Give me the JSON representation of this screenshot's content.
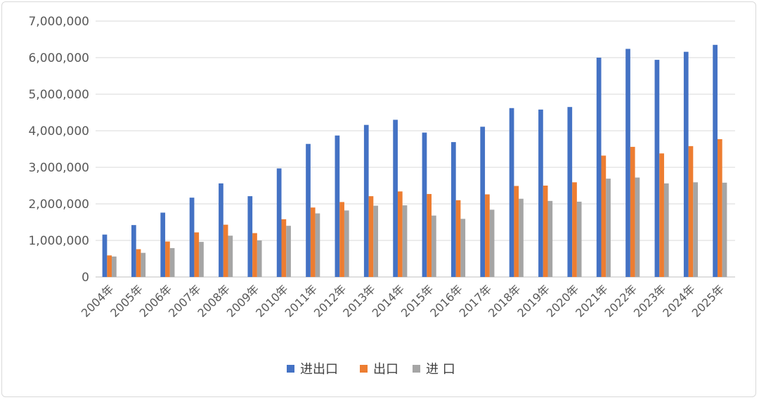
{
  "chart_data": {
    "type": "bar",
    "categories": [
      "2004年",
      "2005年",
      "2006年",
      "2007年",
      "2008年",
      "2009年",
      "2010年",
      "2011年",
      "2012年",
      "2013年",
      "2014年",
      "2015年",
      "2016年",
      "2017年",
      "2018年",
      "2019年",
      "2020年",
      "2021年",
      "2022年",
      "2023年",
      "2024年",
      "2025年"
    ],
    "series": [
      {
        "name": "进出口",
        "color": "#4472c4",
        "values": [
          1160000,
          1420000,
          1760000,
          2170000,
          2560000,
          2210000,
          2970000,
          3640000,
          3870000,
          4160000,
          4300000,
          3950000,
          3690000,
          4110000,
          4620000,
          4580000,
          4650000,
          6000000,
          6240000,
          5940000,
          6160000,
          6350000
        ]
      },
      {
        "name": "出口",
        "color": "#ed7d31",
        "values": [
          590000,
          760000,
          970000,
          1220000,
          1430000,
          1200000,
          1580000,
          1900000,
          2050000,
          2210000,
          2340000,
          2270000,
          2100000,
          2260000,
          2490000,
          2500000,
          2590000,
          3320000,
          3560000,
          3380000,
          3580000,
          3770000
        ]
      },
      {
        "name": "进 口",
        "color": "#a5a5a5",
        "values": [
          560000,
          660000,
          790000,
          960000,
          1130000,
          1000000,
          1400000,
          1740000,
          1820000,
          1950000,
          1960000,
          1680000,
          1590000,
          1840000,
          2140000,
          2080000,
          2060000,
          2690000,
          2720000,
          2560000,
          2590000,
          2580000
        ]
      }
    ],
    "y_ticks": [
      "0",
      "1,000,000",
      "2,000,000",
      "3,000,000",
      "4,000,000",
      "5,000,000",
      "6,000,000",
      "7,000,000"
    ],
    "ylim": [
      0,
      7000000
    ],
    "grid": true,
    "legend_position": "bottom"
  }
}
